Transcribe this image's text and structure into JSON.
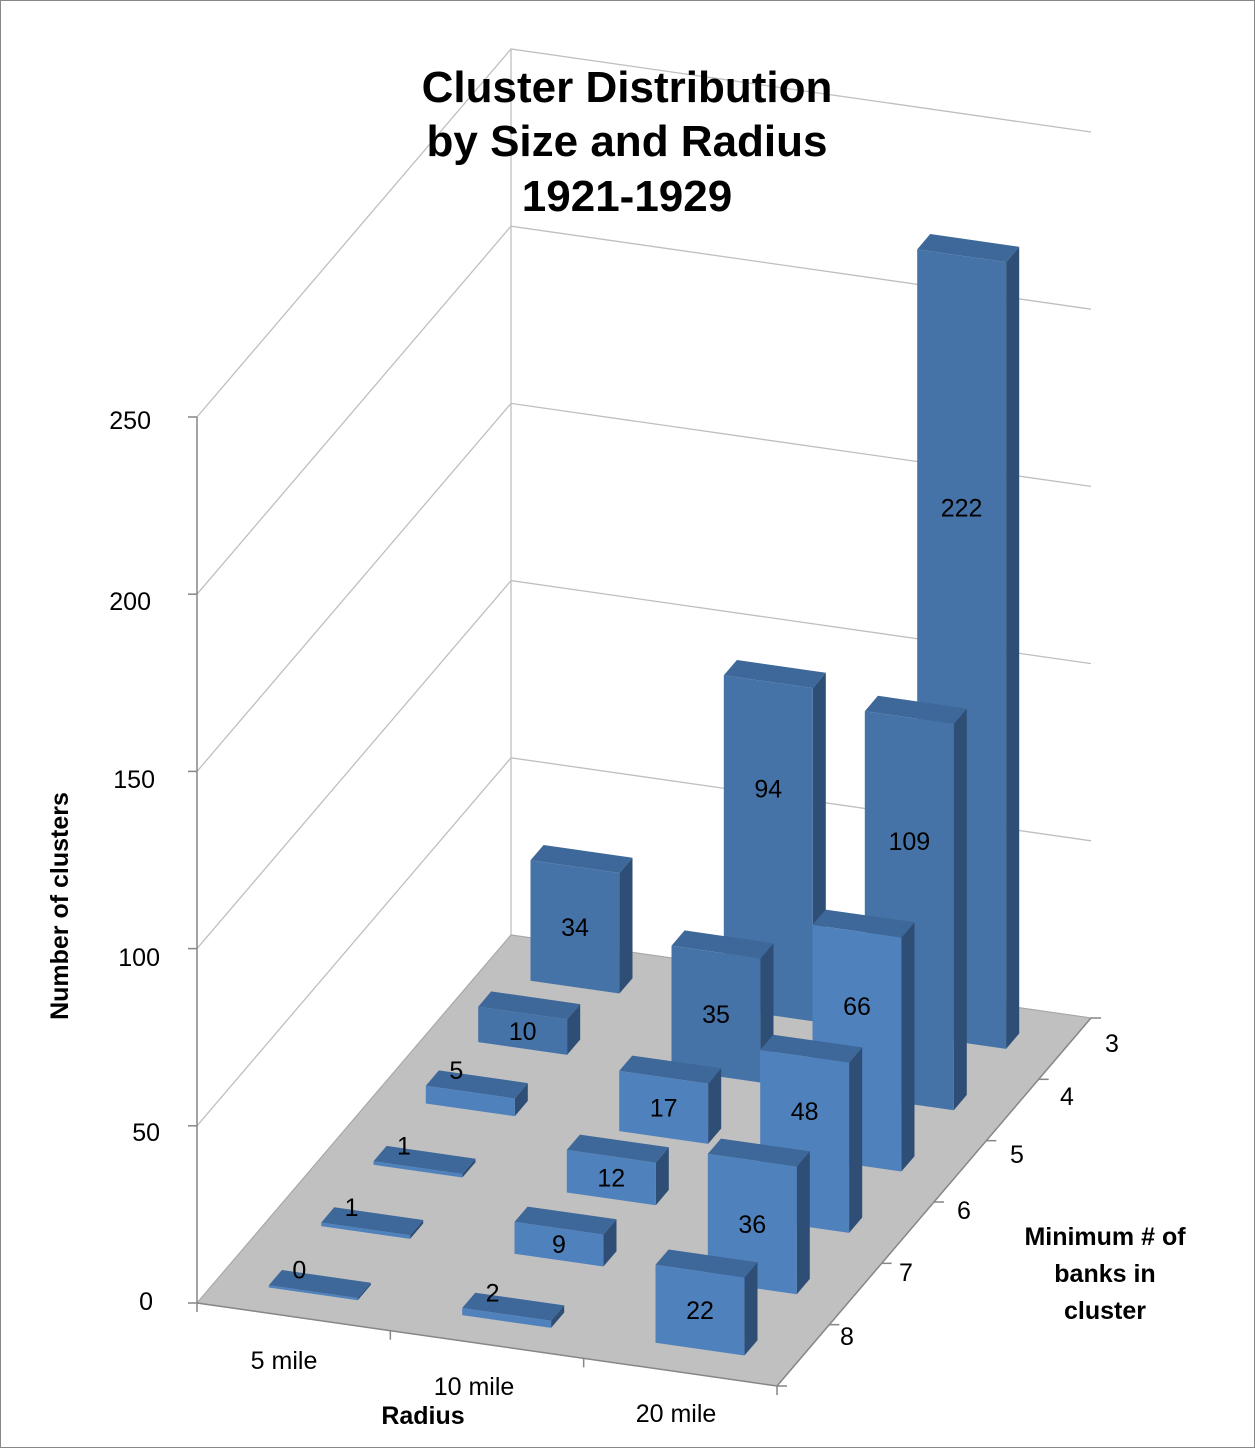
{
  "chart_data": {
    "type": "bar",
    "subtype": "3d-column",
    "title_lines": [
      "Cluster Distribution",
      "by Size and Radius",
      "1921-1929"
    ],
    "xlabel": "Radius",
    "ylabel": "Number of clusters",
    "zlabel_lines": [
      "Minimum # of",
      "banks in",
      "cluster"
    ],
    "x_categories": [
      "5 mile",
      "10 mile",
      "20 mile"
    ],
    "z_categories": [
      "3",
      "4",
      "5",
      "6",
      "7",
      "8"
    ],
    "yticks": [
      "0",
      "50",
      "100",
      "150",
      "200",
      "250"
    ],
    "ylim": [
      0,
      250
    ],
    "grid": true,
    "colors": {
      "front": "#4f81bd",
      "front_back_row": "#4573a7",
      "side": "#2f4e75",
      "top": "#3d6899",
      "floor": "#c0c0c0",
      "grid": "#bfbfbf"
    },
    "series": [
      {
        "name": "3",
        "values": [
          34,
          94,
          222
        ]
      },
      {
        "name": "4",
        "values": [
          10,
          35,
          109
        ]
      },
      {
        "name": "5",
        "values": [
          5,
          17,
          66
        ]
      },
      {
        "name": "6",
        "values": [
          1,
          12,
          48
        ]
      },
      {
        "name": "7",
        "values": [
          1,
          9,
          36
        ]
      },
      {
        "name": "8",
        "values": [
          0,
          2,
          22
        ]
      }
    ]
  }
}
